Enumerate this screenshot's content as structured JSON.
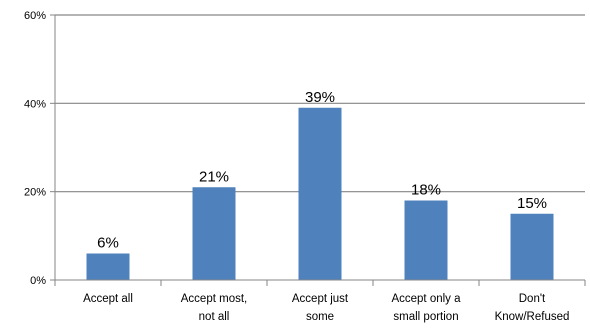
{
  "chart_data": {
    "type": "bar",
    "categories": [
      [
        "Accept all"
      ],
      [
        "Accept most,",
        "not all"
      ],
      [
        "Accept just",
        "some"
      ],
      [
        "Accept only a",
        "small portion"
      ],
      [
        "Don't",
        "Know/Refused"
      ]
    ],
    "values": [
      6,
      21,
      39,
      18,
      15
    ],
    "data_labels": [
      "6%",
      "21%",
      "39%",
      "18%",
      "15%"
    ],
    "y_ticks": [
      0,
      20,
      40,
      60
    ],
    "y_tick_labels": [
      "0%",
      "20%",
      "40%",
      "60%"
    ],
    "ylim": [
      0,
      60
    ],
    "grid": true,
    "legend": false,
    "bar_color": "#4F81BD",
    "grid_color": "#868686"
  }
}
